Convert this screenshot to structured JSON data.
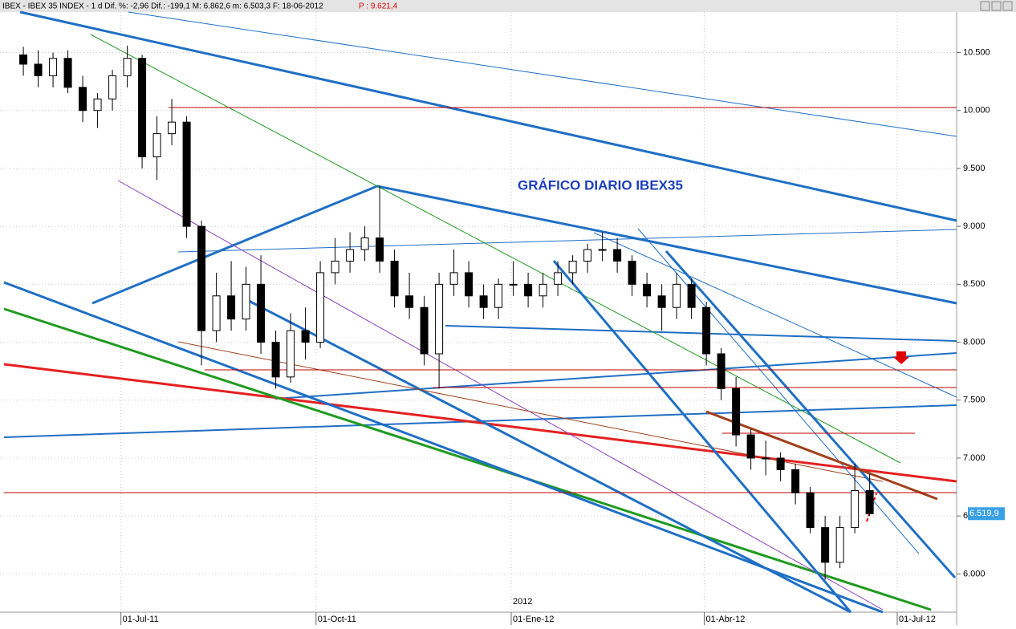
{
  "header": {
    "text": "IBEX - IBEX 35 INDEX - 1 d  Dif. %: -2,96  Dif.: -199,1  M: 6.862,6  m: 6.503,3  F: 18-06-2012",
    "extra": "P : 9.621,4"
  },
  "chart_data": {
    "type": "candlestick",
    "title": "GRÁFICO DIARIO IBEX35",
    "x": [
      "2011-05-16",
      "2011-05-23",
      "2011-05-30",
      "2011-06-06",
      "2011-06-13",
      "2011-06-20",
      "2011-06-27",
      "2011-07-04",
      "2011-07-11",
      "2011-07-18",
      "2011-07-25",
      "2011-08-01",
      "2011-08-08",
      "2011-08-15",
      "2011-08-22",
      "2011-08-29",
      "2011-09-05",
      "2011-09-12",
      "2011-09-19",
      "2011-09-26",
      "2011-10-03",
      "2011-10-10",
      "2011-10-17",
      "2011-10-24",
      "2011-10-31",
      "2011-11-07",
      "2011-11-14",
      "2011-11-21",
      "2011-11-28",
      "2011-12-05",
      "2011-12-12",
      "2011-12-19",
      "2011-12-26",
      "2012-01-02",
      "2012-01-09",
      "2012-01-16",
      "2012-01-23",
      "2012-01-30",
      "2012-02-06",
      "2012-02-13",
      "2012-02-20",
      "2012-02-27",
      "2012-03-05",
      "2012-03-12",
      "2012-03-19",
      "2012-03-26",
      "2012-04-02",
      "2012-04-09",
      "2012-04-16",
      "2012-04-23",
      "2012-04-30",
      "2012-05-07",
      "2012-05-14",
      "2012-05-21",
      "2012-05-28",
      "2012-06-04",
      "2012-06-11",
      "2012-06-18"
    ],
    "open": [
      10480,
      10400,
      10300,
      10450,
      10200,
      10000,
      10100,
      10300,
      10450,
      9600,
      9800,
      9900,
      9000,
      8100,
      8400,
      8200,
      8500,
      8000,
      7700,
      8100,
      8000,
      8600,
      8700,
      8800,
      8900,
      8700,
      8400,
      8300,
      7900,
      8500,
      8600,
      8400,
      8300,
      8500,
      8500,
      8400,
      8500,
      8600,
      8700,
      8800,
      8800,
      8700,
      8500,
      8400,
      8300,
      8500,
      8300,
      7900,
      7600,
      7200,
      7000,
      7000,
      6900,
      6700,
      6400,
      6100,
      6400,
      6719
    ],
    "high": [
      10550,
      10520,
      10500,
      10520,
      10300,
      10150,
      10350,
      10560,
      10480,
      9950,
      10100,
      9950,
      9050,
      8600,
      8700,
      8650,
      8750,
      8100,
      8250,
      8300,
      8700,
      8900,
      8950,
      9000,
      9350,
      8800,
      8600,
      8400,
      8600,
      8800,
      8700,
      8500,
      8550,
      8700,
      8600,
      8600,
      8700,
      8750,
      8850,
      8950,
      8900,
      8750,
      8600,
      8500,
      8600,
      8550,
      8350,
      7950,
      7700,
      7250,
      7150,
      7050,
      6950,
      6750,
      6500,
      6500,
      6950,
      6862.6
    ],
    "low": [
      10300,
      10200,
      10200,
      10150,
      9900,
      9850,
      10000,
      10200,
      9500,
      9400,
      9700,
      8900,
      7800,
      8000,
      8100,
      8100,
      7900,
      7600,
      7650,
      7850,
      7950,
      8500,
      8600,
      8700,
      8600,
      8300,
      8200,
      7800,
      7600,
      8400,
      8300,
      8200,
      8200,
      8400,
      8300,
      8300,
      8400,
      8500,
      8600,
      8700,
      8600,
      8400,
      8300,
      8100,
      8200,
      8200,
      7800,
      7500,
      7100,
      6900,
      6850,
      6800,
      6600,
      6350,
      5950,
      6050,
      6350,
      6503.3
    ],
    "close": [
      10400,
      10300,
      10450,
      10200,
      10000,
      10100,
      10300,
      10450,
      9600,
      9800,
      9900,
      9000,
      8100,
      8400,
      8200,
      8500,
      8000,
      7700,
      8100,
      8000,
      8600,
      8700,
      8800,
      8900,
      8700,
      8400,
      8300,
      7900,
      8500,
      8600,
      8400,
      8300,
      8500,
      8500,
      8400,
      8500,
      8600,
      8700,
      8800,
      8800,
      8700,
      8500,
      8400,
      8300,
      8500,
      8300,
      7900,
      7600,
      7200,
      7000,
      7000,
      6900,
      6700,
      6400,
      6100,
      6400,
      6719,
      6519.9
    ],
    "last_price_label": "6.519,9",
    "xlim": [
      "2011-05-05",
      "2012-07-29"
    ],
    "xticks": [
      {
        "value": "2011-07-01",
        "label": "01-Jul-11"
      },
      {
        "value": "2011-10-01",
        "label": "01-Oct-11"
      },
      {
        "value": "2012-01-01",
        "label": "01-Ene-12"
      },
      {
        "value": "2012-04-01",
        "label": "01-Abr-12"
      },
      {
        "value": "2012-07-01",
        "label": "01-Jul-12"
      }
    ],
    "year_label": "2012",
    "ylim": [
      5670,
      10850
    ],
    "yticks": [
      {
        "value": 6000,
        "label": "6.000"
      },
      {
        "value": 6500,
        "label": "6.500"
      },
      {
        "value": 7000,
        "label": "7.000"
      },
      {
        "value": 7500,
        "label": "7.500"
      },
      {
        "value": 8000,
        "label": "8.000"
      },
      {
        "value": 8500,
        "label": "8.500"
      },
      {
        "value": 9000,
        "label": "9.000"
      },
      {
        "value": 9500,
        "label": "9.500"
      },
      {
        "value": 10000,
        "label": "10.000"
      },
      {
        "value": 10500,
        "label": "10.500"
      }
    ],
    "grid": true
  }
}
